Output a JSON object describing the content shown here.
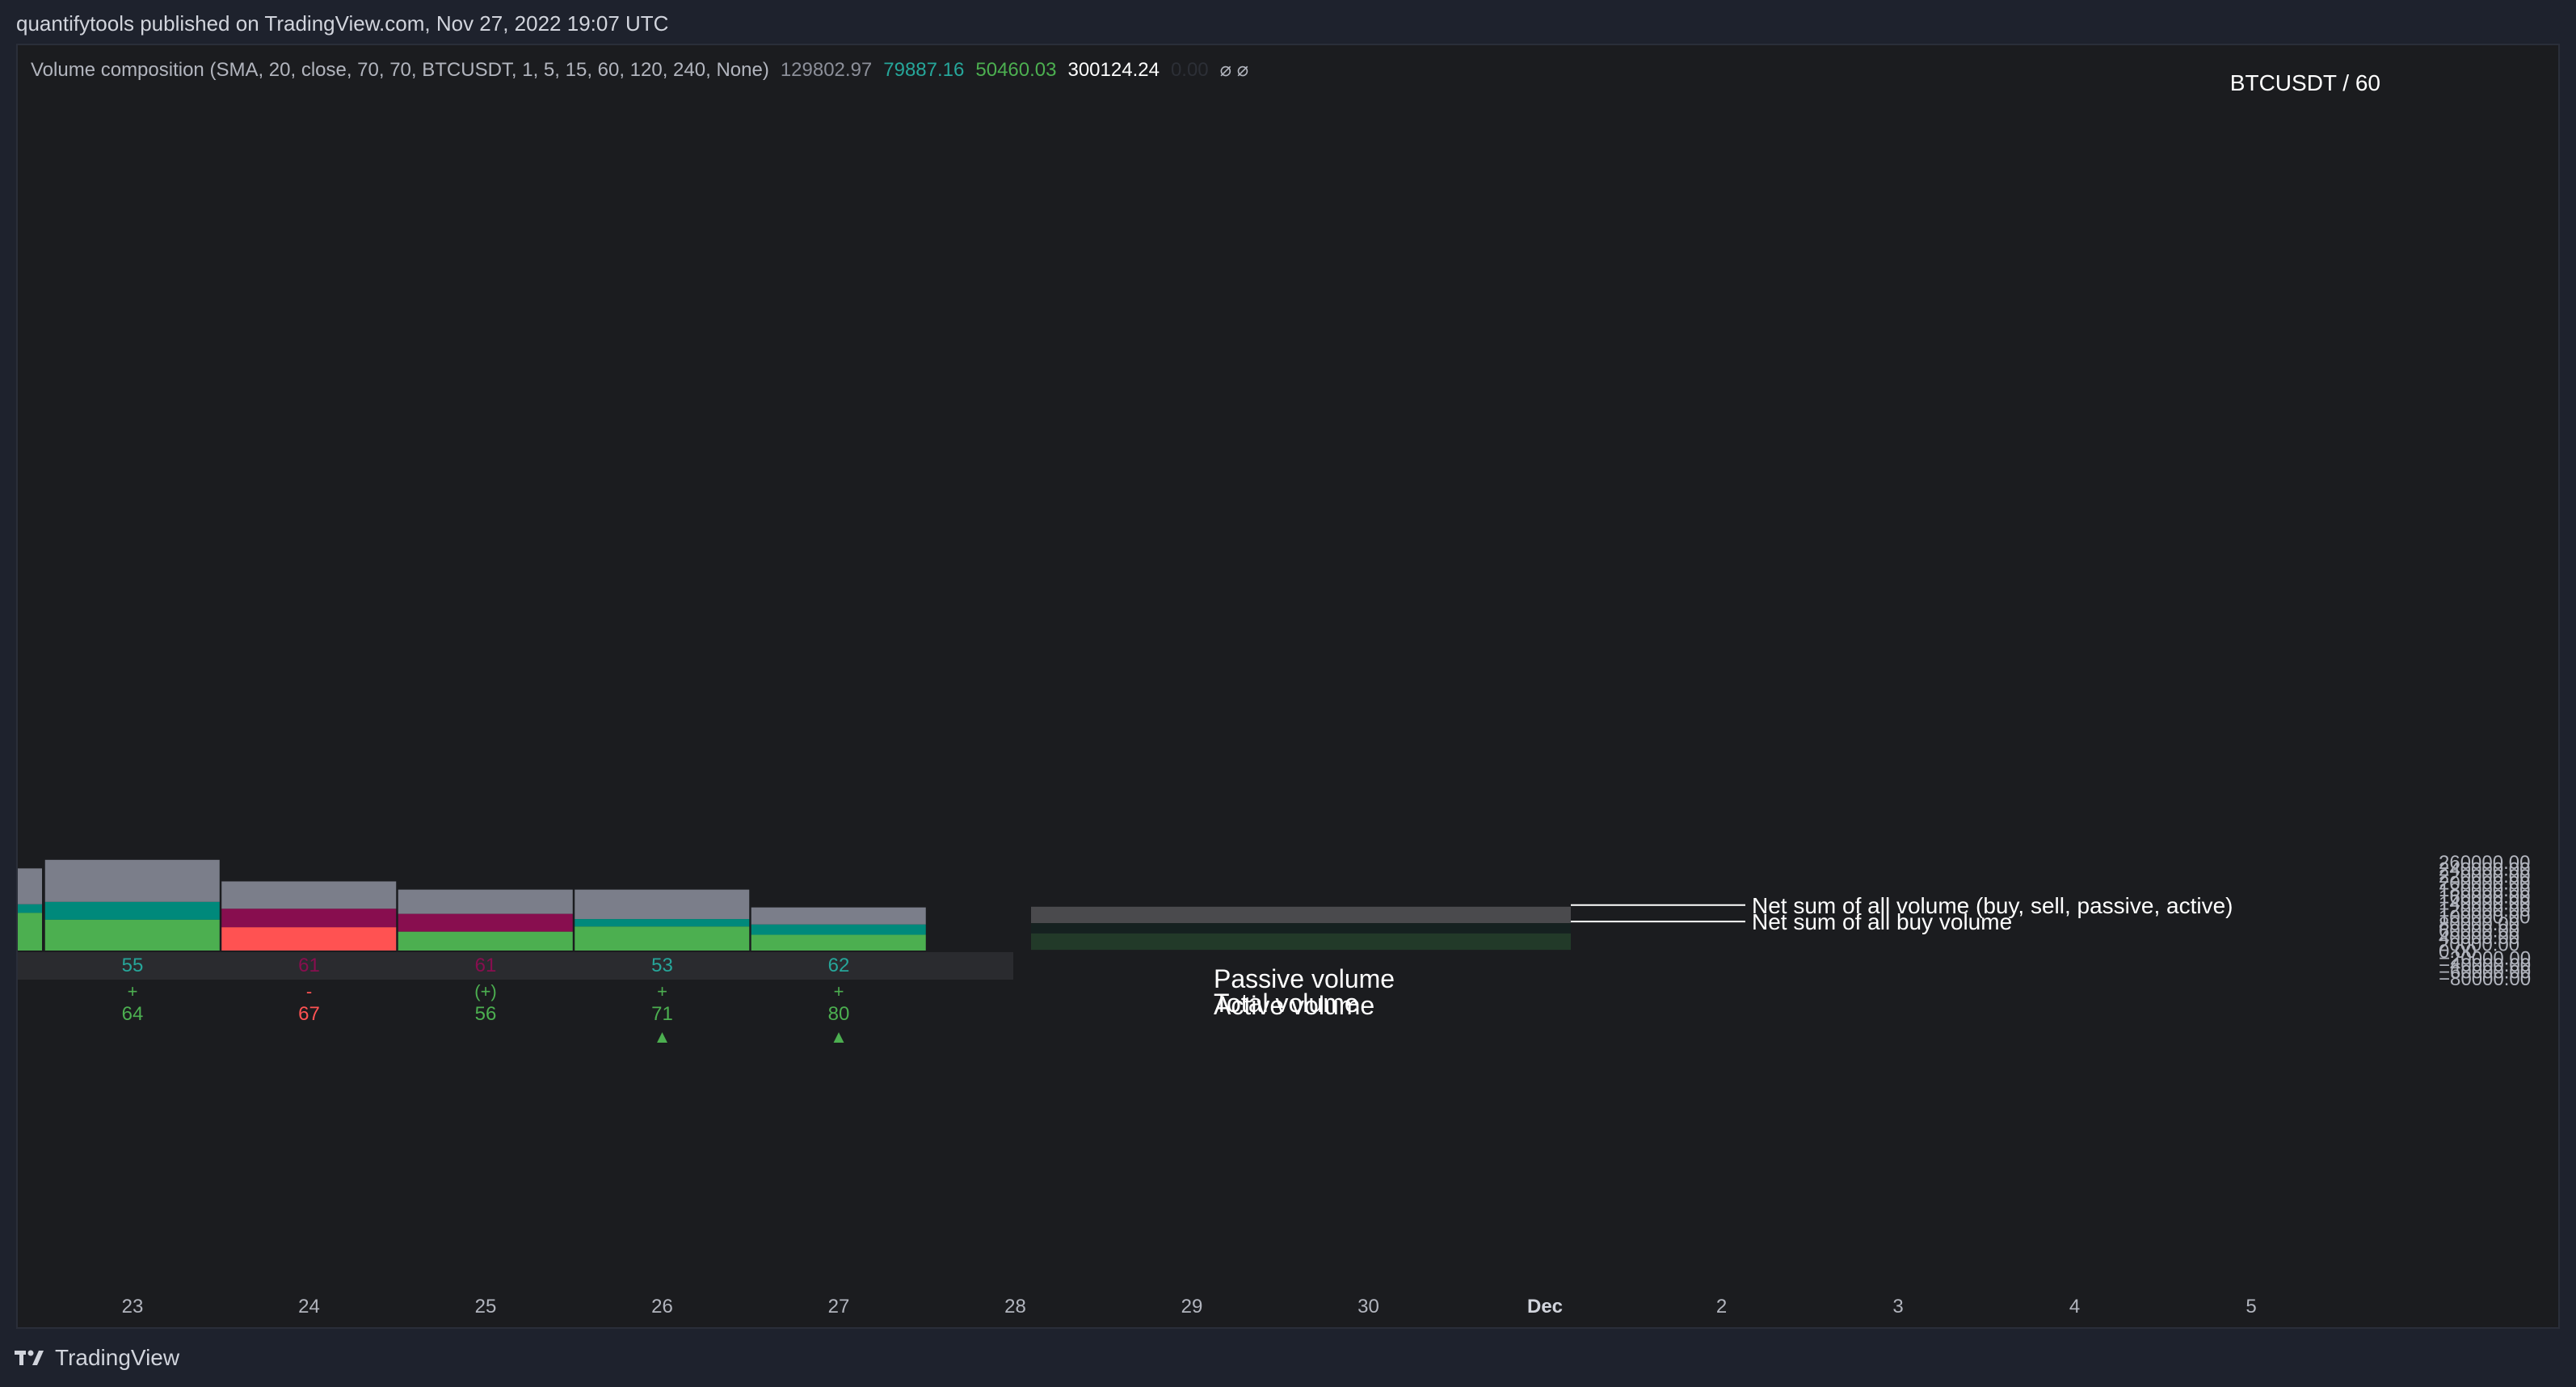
{
  "header": {
    "published": "quantifytools published on TradingView.com, Nov 27, 2022 19:07 UTC"
  },
  "indicator": {
    "title": "Volume composition (SMA, 20, close, 70, 70, BTCUSDT, 1, 5, 15, 60, 120, 240, None)",
    "values": [
      {
        "text": "129802.97",
        "color": "#8c8f99"
      },
      {
        "text": "79887.16",
        "color": "#26a69a"
      },
      {
        "text": "50460.03",
        "color": "#4caf50"
      },
      {
        "text": "300124.24",
        "color": "#ffffff"
      },
      {
        "text": "0.00",
        "color": "#2c2f36"
      }
    ],
    "icons": [
      "null-icon",
      "null-icon"
    ]
  },
  "symbol_label": "BTCUSDT / 60",
  "colors": {
    "total": "#7b7e8a",
    "passive": "#00897b",
    "active_buy": "#4caf50",
    "active_sell": "#ff5252",
    "passive_sell": "#880e4f",
    "legend_total": "#4a4a4d",
    "legend_passive": "#152120",
    "legend_active": "#223a29"
  },
  "legend": {
    "total": "Total volume",
    "passive": "Passive volume",
    "active": "Active volume",
    "note_total": "Net sum of all volume (buy, sell, passive, active)",
    "note_buy": "Net sum of all buy volume"
  },
  "footer": {
    "brand": "TradingView"
  },
  "chart_data": {
    "type": "bar",
    "x": [
      "23",
      "24",
      "25",
      "26",
      "27"
    ],
    "x_ticks": [
      "23",
      "24",
      "25",
      "26",
      "27",
      "28",
      "29",
      "30",
      "Dec",
      "2",
      "3",
      "4",
      "5"
    ],
    "ylim": [
      -90000,
      265000
    ],
    "y_ticks": [
      "260000.00",
      "240000.00",
      "220000.00",
      "200000.00",
      "180000.00",
      "160000.00",
      "140000.00",
      "120000.00",
      "100000.00",
      "80000.00",
      "60000.00",
      "40000.00",
      "20000.00",
      "0.00",
      "−20000.00",
      "−40000.00",
      "−60000.00",
      "−80000.00"
    ],
    "partial_bar": {
      "total": 240000,
      "passive_top": 135000,
      "active": 110000
    },
    "bars": [
      {
        "day": "23",
        "total": 265000,
        "passive_top": 142000,
        "active": 90000,
        "side": "buy"
      },
      {
        "day": "24",
        "total": 202000,
        "passive_top": 122000,
        "active": 68000,
        "side": "sell"
      },
      {
        "day": "25",
        "total": 178000,
        "passive_top": 107000,
        "active": 55000,
        "side": "mixed"
      },
      {
        "day": "26",
        "total": 178000,
        "passive_top": 92000,
        "active": 70000,
        "side": "buy"
      },
      {
        "day": "27",
        "total": 126000,
        "passive_top": 76000,
        "active": 46000,
        "side": "buy"
      }
    ],
    "row1": [
      {
        "text": "55",
        "color": "#26a69a"
      },
      {
        "text": "61",
        "color": "#880e4f"
      },
      {
        "text": "61",
        "color": "#880e4f"
      },
      {
        "text": "53",
        "color": "#26a69a"
      },
      {
        "text": "62",
        "color": "#26a69a"
      }
    ],
    "row2": [
      {
        "sign": "+",
        "value": "64",
        "color": "#4caf50",
        "arrow": ""
      },
      {
        "sign": "-",
        "value": "67",
        "color": "#ff5252",
        "arrow": ""
      },
      {
        "sign": "(+)",
        "value": "56",
        "color": "#4caf50",
        "arrow": ""
      },
      {
        "sign": "+",
        "value": "71",
        "color": "#4caf50",
        "arrow": "▲"
      },
      {
        "sign": "+",
        "value": "80",
        "color": "#4caf50",
        "arrow": "▲"
      }
    ],
    "legend_levels": {
      "top": 128000,
      "buy": 80000,
      "active_top": 50000,
      "bottom": 2000
    }
  }
}
